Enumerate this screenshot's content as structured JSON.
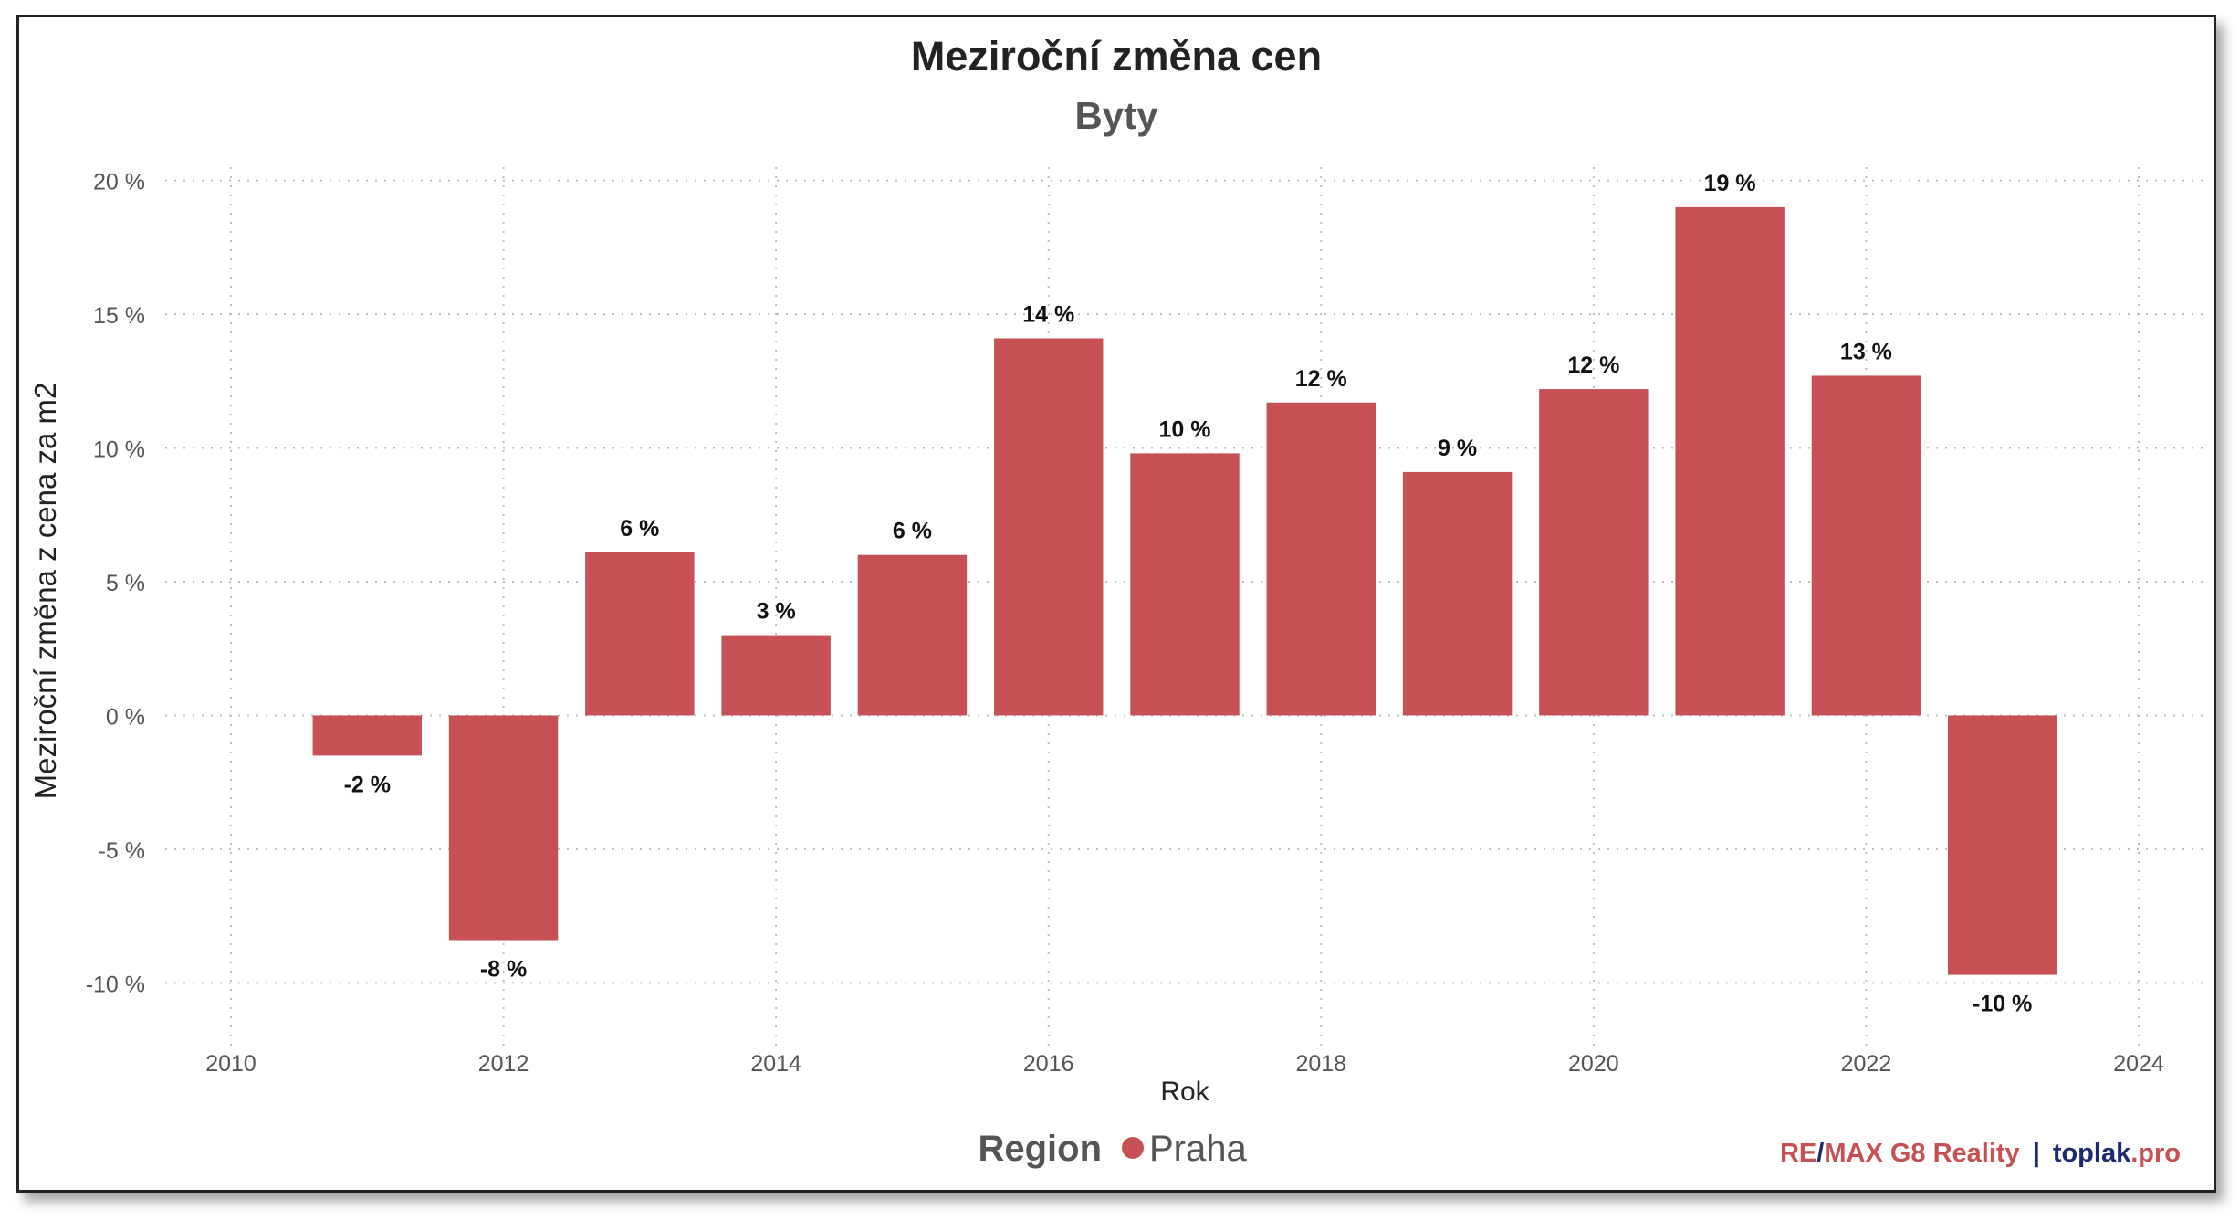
{
  "chart_data": {
    "type": "bar",
    "title": "Meziroční změna cen",
    "subtitle": "Byty",
    "xlabel": "Rok",
    "ylabel": "Meziroční změna z cena za m2",
    "x": [
      2011,
      2012,
      2013,
      2014,
      2015,
      2016,
      2017,
      2018,
      2019,
      2020,
      2021,
      2022,
      2023
    ],
    "series": [
      {
        "name": "Praha",
        "color": "#c75055",
        "values": [
          -1.5,
          -8.4,
          6.1,
          3.0,
          6.0,
          14.1,
          9.8,
          11.7,
          9.1,
          12.2,
          19.0,
          12.7,
          -9.7
        ],
        "labels": [
          "-2 %",
          "-8 %",
          "6 %",
          "3 %",
          "6 %",
          "14 %",
          "10 %",
          "12 %",
          "9 %",
          "12 %",
          "19 %",
          "13 %",
          "-10 %"
        ]
      }
    ],
    "xlim": [
      2010,
      2024
    ],
    "ylim": [
      -10.5,
      20.5
    ],
    "xticks": [
      2010,
      2012,
      2014,
      2016,
      2018,
      2020,
      2022,
      2024
    ],
    "xtick_labels": [
      "2010",
      "2012",
      "2014",
      "2016",
      "2018",
      "2020",
      "2022",
      "2024"
    ],
    "yticks": [
      -10,
      -5,
      0,
      5,
      10,
      15,
      20
    ],
    "ytick_labels": [
      "-10 %",
      "-5 %",
      "0 %",
      "5 %",
      "10 %",
      "15 %",
      "20 %"
    ],
    "grid": true,
    "legend": {
      "title": "Region",
      "items": [
        "Praha"
      ],
      "position": "bottom-center"
    }
  },
  "branding": {
    "remax_re": "RE",
    "remax_slash": "/",
    "remax_rest": "MAX G8 Reality",
    "separator": "|",
    "toplak_main": "toplak",
    "toplak_suffix": ".pro",
    "colors": {
      "red": "#c75055",
      "navy": "#1e2a6e"
    }
  }
}
